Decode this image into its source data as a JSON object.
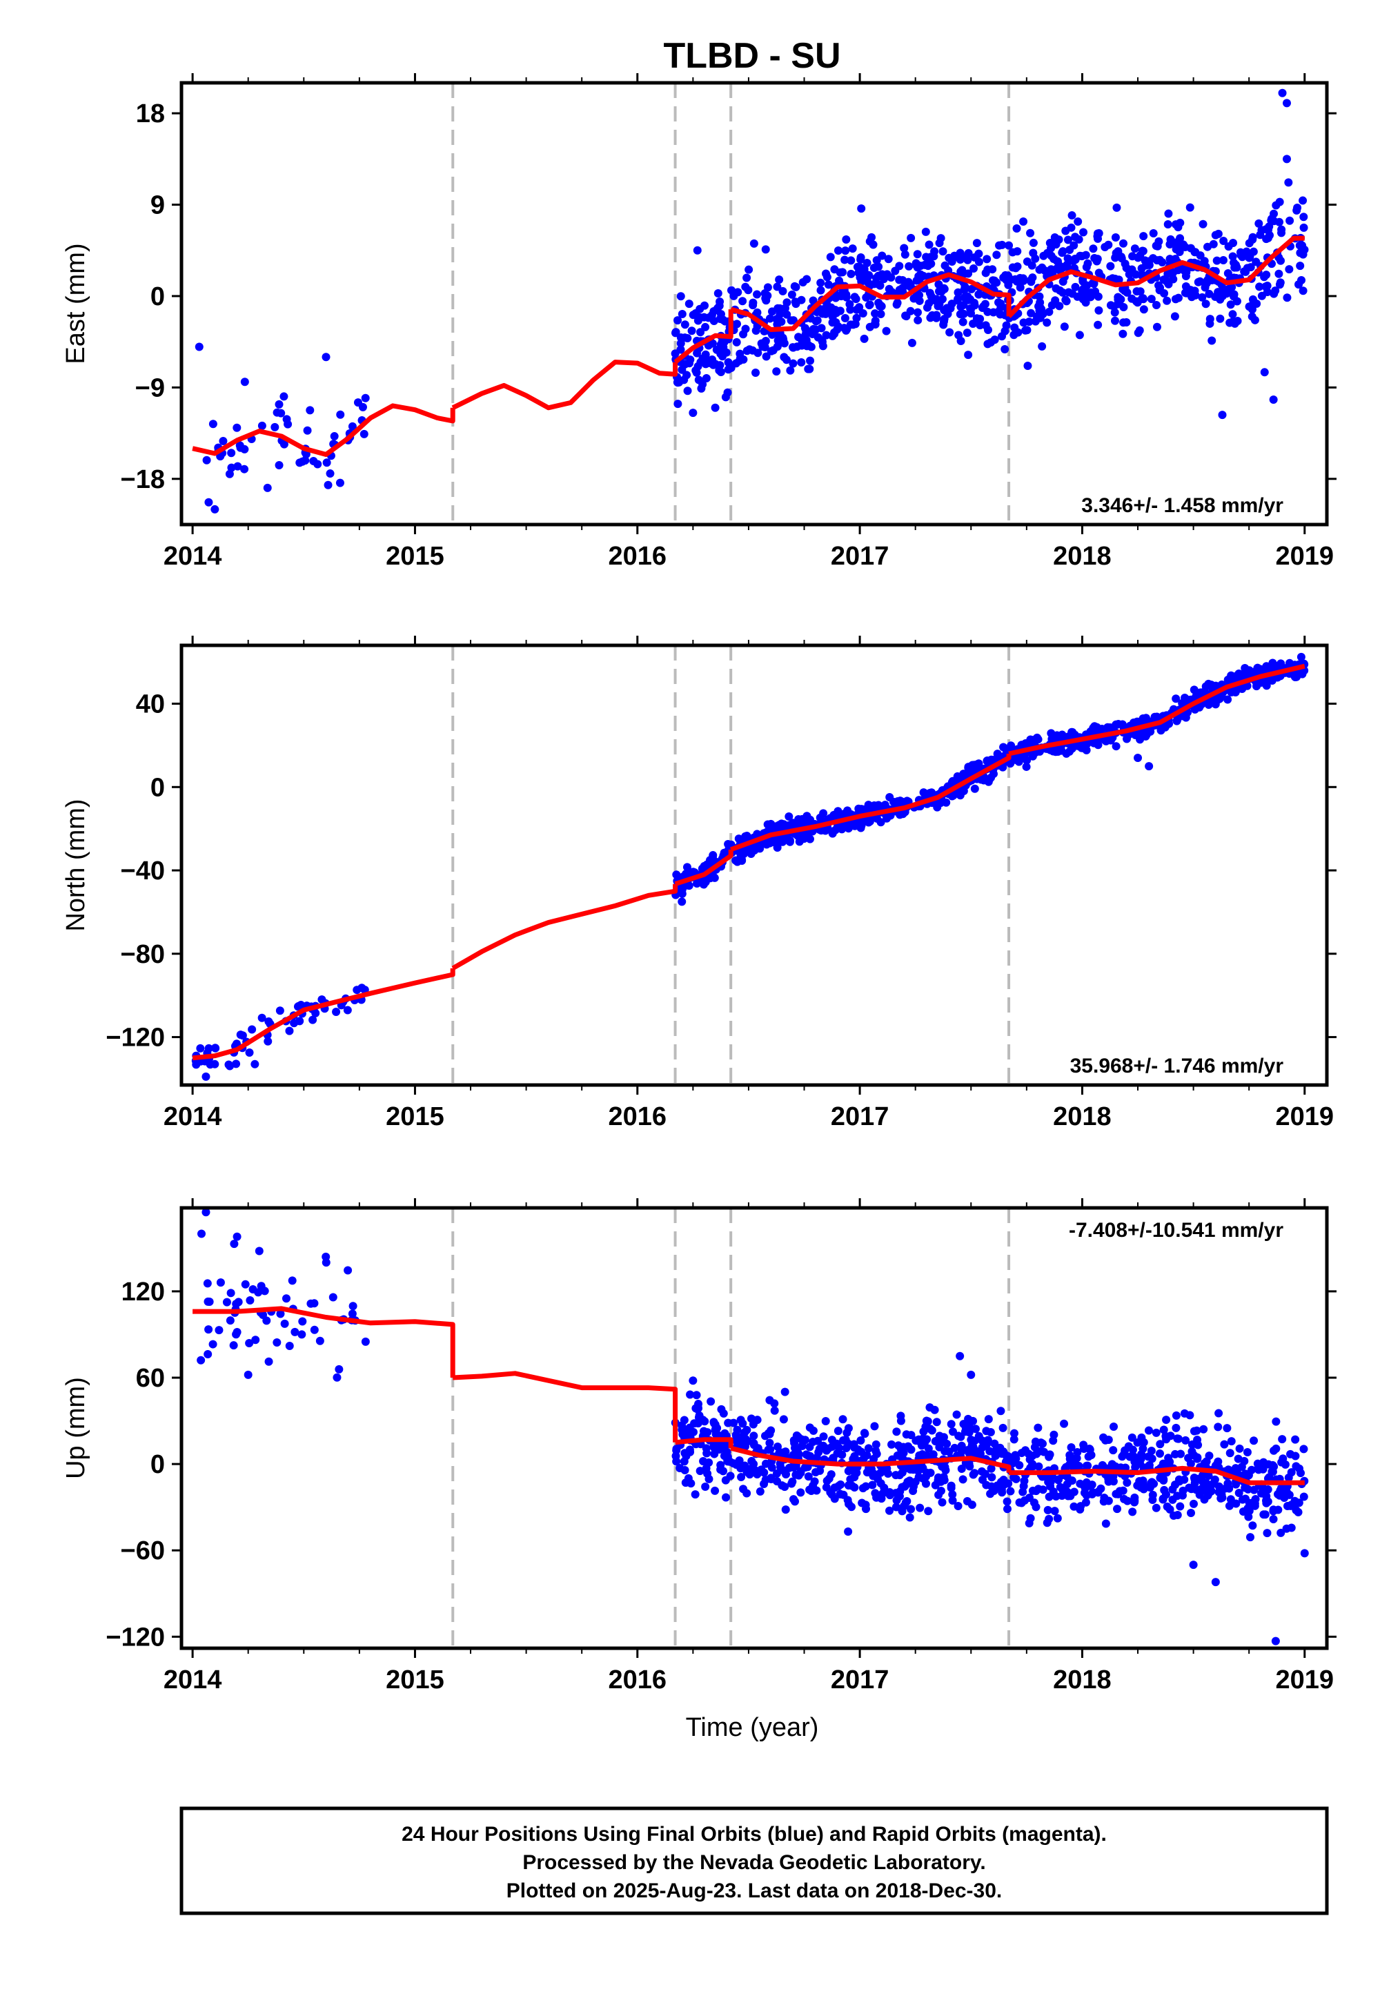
{
  "chart_data": {
    "type": "scatter",
    "title": "TLBD - SU",
    "xlabel": "Time (year)",
    "xlim": [
      2013.95,
      2019.1
    ],
    "x_ticks": [
      "2014",
      "2015",
      "2016",
      "2017",
      "2018",
      "2019"
    ],
    "x_tick_values": [
      2014,
      2015,
      2016,
      2017,
      2018,
      2019
    ],
    "breaks": [
      2015.17,
      2016.17,
      2016.42,
      2017.67
    ],
    "point_color": "#0000ff",
    "model_color": "#ff0000",
    "break_color": "#bbbbbb",
    "panels": [
      {
        "ylabel": "East (mm)",
        "ylim": [
          -22.5,
          21
        ],
        "y_ticks": [
          "18",
          "9",
          "0",
          "−9",
          "−18"
        ],
        "y_tick_values": [
          18,
          9,
          0,
          -9,
          -18
        ],
        "rate_text": "3.346+/- 1.458 mm/yr",
        "rate_position": "bottom-right",
        "model": {
          "segments": [
            {
              "x": [
                2014.0,
                2014.1,
                2014.2,
                2014.3,
                2014.4,
                2014.5,
                2014.6,
                2014.7,
                2014.8,
                2014.9,
                2015.0,
                2015.1,
                2015.17
              ],
              "y": [
                -15.0,
                -15.5,
                -14.2,
                -13.3,
                -13.8,
                -15.0,
                -15.6,
                -14.0,
                -12.0,
                -10.8,
                -11.2,
                -12.0,
                -12.3
              ]
            },
            {
              "x": [
                2015.17,
                2015.3,
                2015.4,
                2015.5,
                2015.6,
                2015.7,
                2015.8,
                2015.9,
                2016.0,
                2016.1,
                2016.17
              ],
              "y": [
                -11.0,
                -9.6,
                -8.8,
                -9.8,
                -11.0,
                -10.5,
                -8.3,
                -6.5,
                -6.6,
                -7.6,
                -7.7
              ]
            },
            {
              "x": [
                2016.17,
                2016.25,
                2016.35,
                2016.42
              ],
              "y": [
                -6.5,
                -5.1,
                -3.9,
                -4.0
              ]
            },
            {
              "x": [
                2016.42,
                2016.5,
                2016.6,
                2016.7,
                2016.8,
                2016.9,
                2017.0,
                2017.1,
                2017.2,
                2017.3,
                2017.4,
                2017.5,
                2017.6,
                2017.67
              ],
              "y": [
                -1.3,
                -1.8,
                -3.3,
                -3.2,
                -1.0,
                0.9,
                1.0,
                -0.1,
                -0.1,
                1.4,
                2.1,
                1.4,
                0.2,
                0.1
              ]
            },
            {
              "x": [
                2017.67,
                2017.75,
                2017.85,
                2017.95,
                2018.05,
                2018.15,
                2018.25,
                2018.35,
                2018.45,
                2018.55,
                2018.65,
                2018.75,
                2018.85,
                2018.95,
                2019.0
              ],
              "y": [
                -2.0,
                -0.2,
                1.6,
                2.4,
                1.8,
                1.1,
                1.3,
                2.5,
                3.3,
                2.6,
                1.3,
                1.6,
                3.8,
                5.7,
                5.7
              ]
            }
          ]
        },
        "points": {
          "groups": [
            {
              "x0": 2014.02,
              "x1": 2014.78,
              "n": 60,
              "seed": 11,
              "base": [
                [
                  2014.0,
                  -15.0
                ],
                [
                  2014.2,
                  -14.2
                ],
                [
                  2014.4,
                  -13.8
                ],
                [
                  2014.6,
                  -15.6
                ],
                [
                  2014.78,
                  -12.5
                ]
              ],
              "sigma": 2.6
            },
            {
              "x0": 2016.17,
              "x1": 2019.0,
              "n": 1000,
              "seed": 23,
              "base": [
                [
                  2016.17,
                  -6.5
                ],
                [
                  2016.42,
                  -4.0
                ],
                [
                  2016.5,
                  -1.8
                ],
                [
                  2016.7,
                  -3.2
                ],
                [
                  2017.0,
                  1.0
                ],
                [
                  2017.3,
                  1.4
                ],
                [
                  2017.67,
                  0.1
                ],
                [
                  2017.95,
                  2.4
                ],
                [
                  2018.15,
                  1.1
                ],
                [
                  2018.45,
                  3.3
                ],
                [
                  2018.65,
                  1.3
                ],
                [
                  2019.0,
                  5.7
                ]
              ],
              "sigma": 2.6
            }
          ],
          "extra": [
            {
              "x": 2014.03,
              "y": -5.0
            },
            {
              "x": 2014.6,
              "y": -6.0
            },
            {
              "x": 2014.1,
              "y": -21.0
            },
            {
              "x": 2018.9,
              "y": 20.0
            },
            {
              "x": 2018.92,
              "y": 19.0
            },
            {
              "x": 2018.92,
              "y": 13.5
            },
            {
              "x": 2018.82,
              "y": -7.5
            },
            {
              "x": 2018.86,
              "y": -10.2
            },
            {
              "x": 2018.63,
              "y": -11.7
            },
            {
              "x": 2016.25,
              "y": -11.5
            },
            {
              "x": 2016.35,
              "y": -11.0
            },
            {
              "x": 2016.27,
              "y": 4.5
            }
          ]
        }
      },
      {
        "ylabel": "North (mm)",
        "ylim": [
          -143,
          68
        ],
        "y_ticks": [
          "40",
          "0",
          "−40",
          "−80",
          "−120"
        ],
        "y_tick_values": [
          40,
          0,
          -40,
          -80,
          -120
        ],
        "rate_text": "35.968+/- 1.746 mm/yr",
        "rate_position": "bottom-right",
        "model": {
          "segments": [
            {
              "x": [
                2014.0,
                2014.1,
                2014.2,
                2014.35,
                2014.5,
                2014.65,
                2014.8,
                2015.0,
                2015.17
              ],
              "y": [
                -130.0,
                -129.0,
                -126.0,
                -116.0,
                -107.0,
                -103.0,
                -99.0,
                -94.0,
                -90.0
              ]
            },
            {
              "x": [
                2015.17,
                2015.3,
                2015.45,
                2015.6,
                2015.75,
                2015.9,
                2016.05,
                2016.17
              ],
              "y": [
                -87.0,
                -79.0,
                -71.0,
                -65.0,
                -61.0,
                -57.0,
                -52.0,
                -50.0
              ]
            },
            {
              "x": [
                2016.17,
                2016.3,
                2016.42
              ],
              "y": [
                -46.5,
                -42.0,
                -33.0
              ]
            },
            {
              "x": [
                2016.42,
                2016.6,
                2016.8,
                2017.0,
                2017.2,
                2017.35,
                2017.5,
                2017.67
              ],
              "y": [
                -30.0,
                -23.0,
                -19.0,
                -14.0,
                -10.0,
                -5.0,
                4.0,
                14.0
              ]
            },
            {
              "x": [
                2017.67,
                2017.8,
                2018.0,
                2018.2,
                2018.35,
                2018.5,
                2018.65,
                2018.8,
                2019.0
              ],
              "y": [
                16.0,
                19.0,
                23.0,
                27.0,
                31.0,
                40.0,
                48.0,
                53.0,
                58.0
              ]
            }
          ]
        },
        "points": {
          "groups": [
            {
              "x0": 2014.0,
              "x1": 2014.78,
              "n": 60,
              "seed": 37,
              "base": [
                [
                  2014.0,
                  -130.0
                ],
                [
                  2014.1,
                  -129.0
                ],
                [
                  2014.2,
                  -126.0
                ],
                [
                  2014.35,
                  -116.0
                ],
                [
                  2014.5,
                  -107.0
                ],
                [
                  2014.65,
                  -103.0
                ],
                [
                  2014.78,
                  -99.0
                ]
              ],
              "sigma": 3.5
            },
            {
              "x0": 2016.17,
              "x1": 2019.0,
              "n": 1000,
              "seed": 41,
              "base": [
                [
                  2016.17,
                  -46.5
                ],
                [
                  2016.3,
                  -42.0
                ],
                [
                  2016.42,
                  -32.0
                ],
                [
                  2016.6,
                  -23.0
                ],
                [
                  2016.8,
                  -19.0
                ],
                [
                  2017.0,
                  -14.0
                ],
                [
                  2017.2,
                  -10.0
                ],
                [
                  2017.35,
                  -5.0
                ],
                [
                  2017.5,
                  4.0
                ],
                [
                  2017.67,
                  15.0
                ],
                [
                  2017.8,
                  19.0
                ],
                [
                  2018.0,
                  23.0
                ],
                [
                  2018.2,
                  27.0
                ],
                [
                  2018.35,
                  31.0
                ],
                [
                  2018.5,
                  40.0
                ],
                [
                  2018.65,
                  48.0
                ],
                [
                  2018.8,
                  53.0
                ],
                [
                  2019.0,
                  58.0
                ]
              ],
              "sigma": 2.6
            }
          ],
          "extra": [
            {
              "x": 2014.06,
              "y": -139.0
            },
            {
              "x": 2014.28,
              "y": -133.0
            },
            {
              "x": 2014.1,
              "y": -133.0
            },
            {
              "x": 2018.3,
              "y": 10.0
            },
            {
              "x": 2018.25,
              "y": 14.0
            },
            {
              "x": 2016.2,
              "y": -55.0
            }
          ]
        }
      },
      {
        "ylabel": "Up (mm)",
        "ylim": [
          -128,
          178
        ],
        "y_ticks": [
          "120",
          "60",
          "0",
          "−60",
          "−120"
        ],
        "y_tick_values": [
          120,
          60,
          0,
          -60,
          -120
        ],
        "rate_text": "-7.408+/-10.541 mm/yr",
        "rate_position": "top-right",
        "model": {
          "segments": [
            {
              "x": [
                2014.0,
                2014.2,
                2014.4,
                2014.6,
                2014.8,
                2015.0,
                2015.17
              ],
              "y": [
                106.0,
                106.0,
                108.0,
                102.0,
                98.0,
                99.0,
                97.0
              ]
            },
            {
              "x": [
                2015.17,
                2015.3,
                2015.45,
                2015.6,
                2015.75,
                2015.9,
                2016.05,
                2016.17
              ],
              "y": [
                60.0,
                61.0,
                63.0,
                58.0,
                53.0,
                53.0,
                53.0,
                52.0
              ]
            },
            {
              "x": [
                2016.17,
                2016.3,
                2016.42
              ],
              "y": [
                15.0,
                17.0,
                17.0
              ]
            },
            {
              "x": [
                2016.42,
                2016.55,
                2016.7,
                2016.9,
                2017.1,
                2017.3,
                2017.5,
                2017.67
              ],
              "y": [
                11.0,
                6.0,
                2.0,
                0.0,
                0.0,
                2.0,
                4.0,
                -2.0
              ]
            },
            {
              "x": [
                2017.67,
                2017.85,
                2018.05,
                2018.25,
                2018.45,
                2018.6,
                2018.75,
                2019.0
              ],
              "y": [
                -6.0,
                -6.0,
                -5.0,
                -6.0,
                -3.0,
                -5.0,
                -13.0,
                -13.0
              ]
            }
          ]
        },
        "points": {
          "groups": [
            {
              "x0": 2014.0,
              "x1": 2014.78,
              "n": 60,
              "seed": 53,
              "base": [
                [
                  2014.0,
                  106.0
                ],
                [
                  2014.2,
                  106.0
                ],
                [
                  2014.4,
                  108.0
                ],
                [
                  2014.6,
                  102.0
                ],
                [
                  2014.78,
                  98.0
                ]
              ],
              "sigma": 18.0
            },
            {
              "x0": 2016.17,
              "x1": 2019.0,
              "n": 1000,
              "seed": 67,
              "base": [
                [
                  2016.17,
                  15.0
                ],
                [
                  2016.3,
                  17.0
                ],
                [
                  2016.42,
                  11.0
                ],
                [
                  2016.55,
                  6.0
                ],
                [
                  2016.7,
                  2.0
                ],
                [
                  2016.9,
                  0.0
                ],
                [
                  2017.1,
                  0.0
                ],
                [
                  2017.3,
                  2.0
                ],
                [
                  2017.5,
                  4.0
                ],
                [
                  2017.67,
                  -3.0
                ],
                [
                  2017.85,
                  -6.0
                ],
                [
                  2018.05,
                  -5.0
                ],
                [
                  2018.25,
                  -6.0
                ],
                [
                  2018.45,
                  -3.0
                ],
                [
                  2018.6,
                  -5.0
                ],
                [
                  2018.75,
                  -13.0
                ],
                [
                  2019.0,
                  -13.0
                ]
              ],
              "sigma": 16.0
            }
          ],
          "extra": [
            {
              "x": 2014.06,
              "y": 175.0
            },
            {
              "x": 2014.04,
              "y": 160.0
            },
            {
              "x": 2014.2,
              "y": 158.0
            },
            {
              "x": 2014.25,
              "y": 62.0
            },
            {
              "x": 2014.3,
              "y": 148.0
            },
            {
              "x": 2018.87,
              "y": -123.0
            },
            {
              "x": 2018.6,
              "y": -82.0
            },
            {
              "x": 2018.5,
              "y": -70.0
            },
            {
              "x": 2017.45,
              "y": 75.0
            },
            {
              "x": 2017.5,
              "y": 62.0
            },
            {
              "x": 2016.25,
              "y": 58.0
            },
            {
              "x": 2019.0,
              "y": -62.0
            }
          ]
        }
      }
    ]
  },
  "footer": {
    "lines": [
      "24 Hour Positions Using Final Orbits (blue) and Rapid Orbits (magenta).",
      "Processed by the Nevada Geodetic Laboratory.",
      "Plotted on 2025-Aug-23. Last data on 2018-Dec-30."
    ]
  }
}
